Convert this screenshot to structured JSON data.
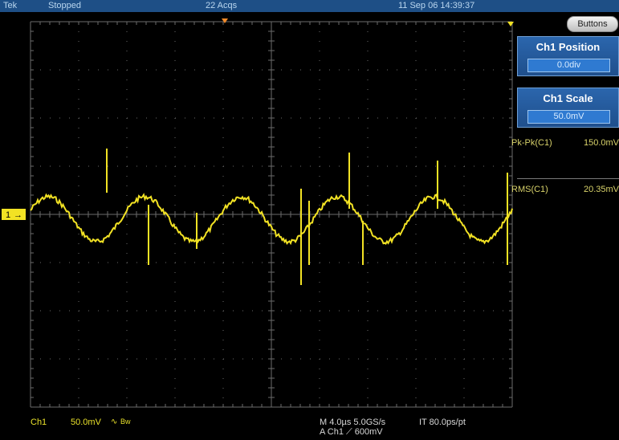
{
  "status_bar": {
    "brand": "Tek",
    "run_state": "Stopped",
    "acquisitions": "22 Acqs",
    "datetime": "11 Sep 06 14:39:37"
  },
  "side_panel": {
    "buttons_label": "Buttons",
    "position": {
      "title": "Ch1 Position",
      "value": "0.0div"
    },
    "scale": {
      "title": "Ch1 Scale",
      "value": "50.0mV"
    },
    "measurements": [
      {
        "name": "Pk-Pk(C1)",
        "value": "150.0mV"
      },
      {
        "name": "RMS(C1)",
        "value": "20.35mV"
      }
    ]
  },
  "channel_marker": "1",
  "bottom_readout": {
    "channel": "Ch1",
    "scale": "50.0mV",
    "bw_label": "Bw",
    "timebase": "M 4.0µs 5.0GS/s",
    "interp": "IT 80.0ps/pt",
    "trigger": "A  Ch1  ⟋  600mV"
  },
  "colors": {
    "trace": "#f2e224",
    "grid": "#6b6b6b",
    "panel": "#2a62a8",
    "header": "#1e4f86"
  }
}
